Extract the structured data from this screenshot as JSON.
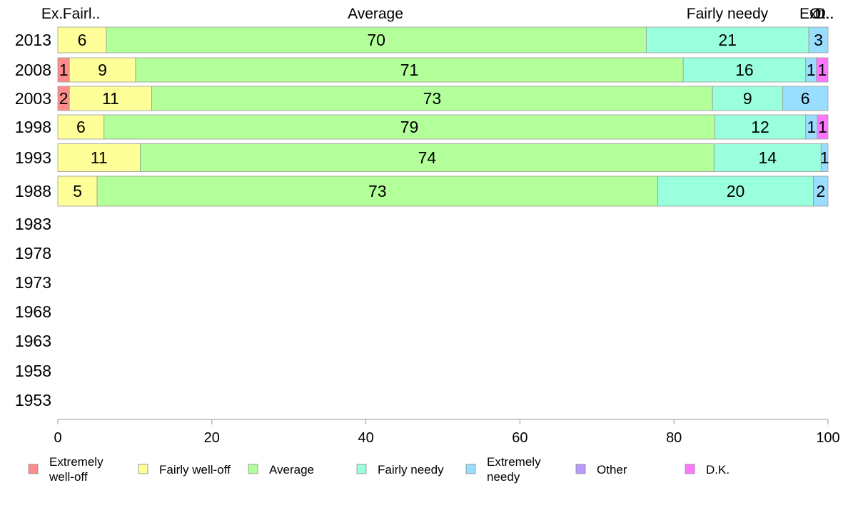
{
  "chart_data": {
    "type": "bar",
    "orientation": "horizontal",
    "stacked": true,
    "title": "",
    "xlabel": "",
    "ylabel": "",
    "xlim": [
      0,
      100
    ],
    "x_ticks": [
      0,
      20,
      40,
      60,
      80,
      100
    ],
    "grid": false,
    "legend_position": "bottom",
    "categories": [
      "2013",
      "2008",
      "2003",
      "1998",
      "1993",
      "1988",
      "1983",
      "1978",
      "1973",
      "1968",
      "1963",
      "1958",
      "1953"
    ],
    "top_labels": [
      "Ex..",
      "Fairl..",
      "Average",
      "Fairly needy",
      "Ext..",
      "Ot..",
      "D.."
    ],
    "series": [
      {
        "name": "Extremely well-off",
        "legend_lines": [
          "Extremely",
          "well-off"
        ],
        "color": "#ff8b8b",
        "values": [
          0,
          1.5,
          1.5,
          0,
          0,
          0,
          null,
          null,
          null,
          null,
          null,
          null,
          null
        ],
        "labels": [
          "",
          "1",
          "2",
          "",
          "",
          "",
          "",
          "",
          "",
          "",
          "",
          "",
          ""
        ]
      },
      {
        "name": "Fairly well-off",
        "legend_lines": [
          "Fairly well-off"
        ],
        "color": "#ffff99",
        "values": [
          6.3,
          8.6,
          10.7,
          6.0,
          10.7,
          5.1,
          null,
          null,
          null,
          null,
          null,
          null,
          null
        ],
        "labels": [
          "6",
          "9",
          "11",
          "6",
          "11",
          "5",
          "",
          "",
          "",
          "",
          "",
          "",
          ""
        ]
      },
      {
        "name": "Average",
        "legend_lines": [
          "Average"
        ],
        "color": "#b3ff99",
        "values": [
          70.1,
          71.1,
          72.8,
          79.3,
          74.5,
          72.8,
          null,
          null,
          null,
          null,
          null,
          null,
          null
        ],
        "labels": [
          "70",
          "71",
          "73",
          "79",
          "74",
          "73",
          "",
          "",
          "",
          "",
          "",
          "",
          ""
        ]
      },
      {
        "name": "Fairly needy",
        "legend_lines": [
          "Fairly needy"
        ],
        "color": "#99ffdd",
        "values": [
          21.1,
          15.9,
          9.1,
          11.8,
          13.9,
          20.2,
          null,
          null,
          null,
          null,
          null,
          null,
          null
        ],
        "labels": [
          "21",
          "16",
          "9",
          "12",
          "14",
          "20",
          "",
          "",
          "",
          "",
          "",
          "",
          ""
        ]
      },
      {
        "name": "Extremely needy",
        "legend_lines": [
          "Extremely",
          "needy"
        ],
        "color": "#99ddff",
        "values": [
          2.5,
          1.4,
          5.9,
          1.5,
          0.9,
          1.9,
          null,
          null,
          null,
          null,
          null,
          null,
          null
        ],
        "labels": [
          "3",
          "1",
          "6",
          "1",
          "1",
          "2",
          "",
          "",
          "",
          "",
          "",
          "",
          ""
        ]
      },
      {
        "name": "Other",
        "legend_lines": [
          "Other"
        ],
        "color": "#bb99ff",
        "values": [
          0,
          0,
          0,
          0,
          0,
          0,
          null,
          null,
          null,
          null,
          null,
          null,
          null
        ],
        "labels": [
          "",
          "",
          "",
          "",
          "",
          "",
          "",
          "",
          "",
          "",
          "",
          "",
          ""
        ]
      },
      {
        "name": "D.K.",
        "legend_lines": [
          "D.K."
        ],
        "color": "#ff77ff",
        "values": [
          0,
          1.5,
          0,
          1.4,
          0,
          0,
          null,
          null,
          null,
          null,
          null,
          null,
          null
        ],
        "labels": [
          "",
          "1",
          "",
          "1",
          "",
          "",
          "",
          "",
          "",
          "",
          "",
          "",
          ""
        ]
      }
    ]
  }
}
